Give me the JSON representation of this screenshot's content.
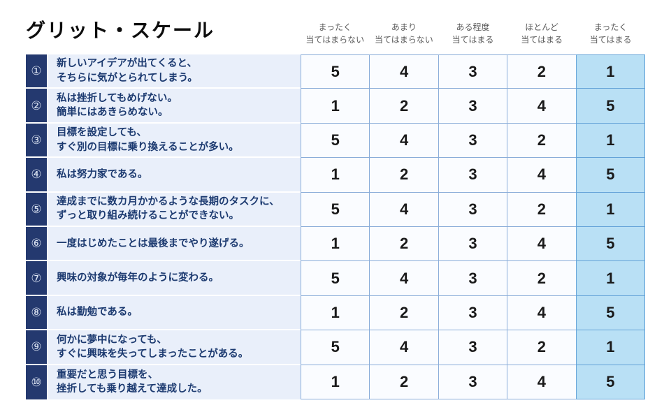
{
  "title": "グリット・スケール",
  "header": {
    "columns": [
      {
        "line1": "まったく",
        "line2": "当てはまらない"
      },
      {
        "line1": "あまり",
        "line2": "当てはまらない"
      },
      {
        "line1": "ある程度",
        "line2": "当てはまる"
      },
      {
        "line1": "ほとんど",
        "line2": "当てはまる"
      },
      {
        "line1": "まったく",
        "line2": "当てはまる"
      }
    ]
  },
  "rows": [
    {
      "num": "①",
      "line1": "新しいアイデアが出てくると、",
      "line2": "そちらに気がとられてしまう。",
      "scores": [
        "5",
        "4",
        "3",
        "2",
        "1"
      ]
    },
    {
      "num": "②",
      "line1": "私は挫折してもめげない。",
      "line2": "簡単にはあきらめない。",
      "scores": [
        "1",
        "2",
        "3",
        "4",
        "5"
      ]
    },
    {
      "num": "③",
      "line1": "目標を設定しても、",
      "line2": "すぐ別の目標に乗り換えることが多い。",
      "scores": [
        "5",
        "4",
        "3",
        "2",
        "1"
      ]
    },
    {
      "num": "④",
      "line1": "私は努力家である。",
      "line2": "",
      "scores": [
        "1",
        "2",
        "3",
        "4",
        "5"
      ]
    },
    {
      "num": "⑤",
      "line1": "達成までに数カ月かかるような長期のタスクに、",
      "line2": "ずっと取り組み続けることができない。",
      "scores": [
        "5",
        "4",
        "3",
        "2",
        "1"
      ]
    },
    {
      "num": "⑥",
      "line1": "一度はじめたことは最後までやり遂げる。",
      "line2": "",
      "scores": [
        "1",
        "2",
        "3",
        "4",
        "5"
      ]
    },
    {
      "num": "⑦",
      "line1": "興味の対象が毎年のように変わる。",
      "line2": "",
      "scores": [
        "5",
        "4",
        "3",
        "2",
        "1"
      ]
    },
    {
      "num": "⑧",
      "line1": "私は勤勉である。",
      "line2": "",
      "scores": [
        "1",
        "2",
        "3",
        "4",
        "5"
      ]
    },
    {
      "num": "⑨",
      "line1": "何かに夢中になっても、",
      "line2": "すぐに興味を失ってしまったことがある。",
      "scores": [
        "5",
        "4",
        "3",
        "2",
        "1"
      ]
    },
    {
      "num": "⑩",
      "line1": "重要だと思う目標を、",
      "line2": "挫折しても乗り越えて達成した。",
      "scores": [
        "1",
        "2",
        "3",
        "4",
        "5"
      ]
    }
  ],
  "colors": {
    "number_column_bg": "#24396f",
    "statement_bg": "#e9effa",
    "statement_text": "#1c3a70",
    "score_cell_bg": "#fafcff",
    "score_cell_border": "#8aadd9",
    "highlight_column_bg": "#b9e0f5",
    "highlight_column_border": "#64a3d8",
    "header_text": "#5a5a5a",
    "title_text": "#0d0d0d"
  }
}
